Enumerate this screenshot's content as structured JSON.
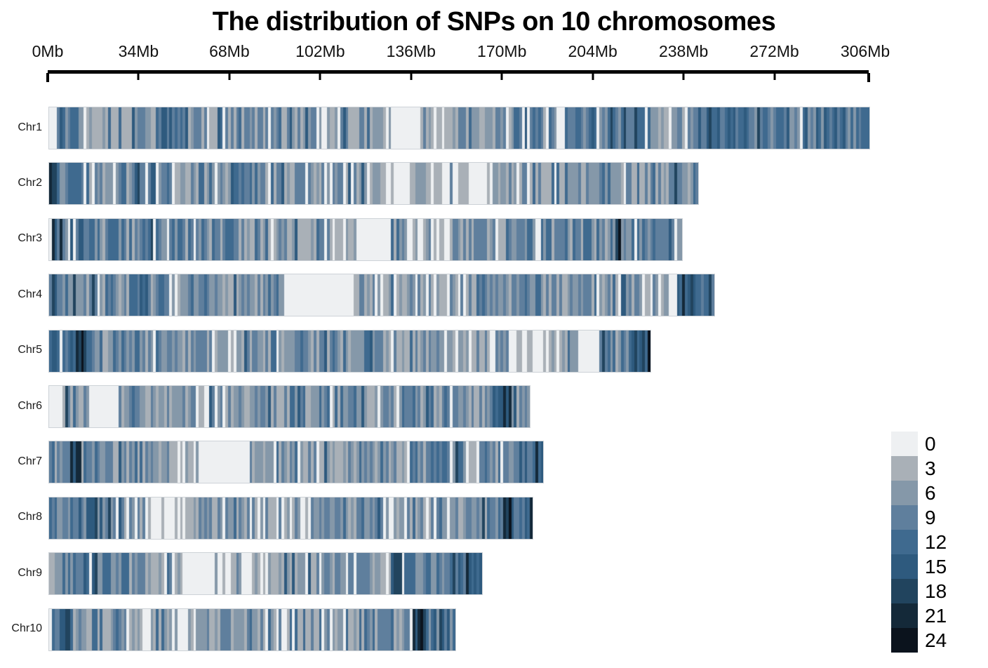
{
  "title": "The distribution of SNPs on 10 chromosomes",
  "axis": {
    "tick_labels": [
      "0Mb",
      "34Mb",
      "68Mb",
      "102Mb",
      "136Mb",
      "170Mb",
      "204Mb",
      "238Mb",
      "272Mb",
      "306Mb"
    ],
    "tick_values_mb": [
      0,
      34,
      68,
      102,
      136,
      170,
      204,
      238,
      272,
      306
    ],
    "max_mb": 306,
    "unit": "Mb"
  },
  "legend": {
    "values": [
      "0",
      "3",
      "6",
      "9",
      "12",
      "15",
      "18",
      "21",
      "24"
    ],
    "colors": [
      "#eef0f2",
      "#a9b0b7",
      "#8598a9",
      "#5f7f9d",
      "#3f6a8f",
      "#2e5a7e",
      "#21445e",
      "#142939",
      "#0b131d"
    ],
    "bin_step": 3
  },
  "chart_data": {
    "type": "heatmap",
    "title": "The distribution of SNPs on 10 chromosomes",
    "x_unit": "Mb",
    "x_range": [
      0,
      306
    ],
    "window_size_mb": 1,
    "value_meaning": "SNP count per 1Mb window (color-coded, legend scale 0-24)",
    "value_range": [
      0,
      24
    ],
    "legend_position": "right",
    "chromosomes": [
      {
        "name": "Chr1",
        "length_mb": 307,
        "seed": 13,
        "density_segments": [
          [
            0,
            2,
            1
          ],
          [
            2,
            12,
            12
          ],
          [
            12,
            40,
            8
          ],
          [
            40,
            52,
            13
          ],
          [
            52,
            90,
            8
          ],
          [
            90,
            118,
            7
          ],
          [
            118,
            128,
            5
          ],
          [
            128,
            138,
            1
          ],
          [
            138,
            160,
            6
          ],
          [
            160,
            174,
            7
          ],
          [
            174,
            184,
            12
          ],
          [
            184,
            190,
            8
          ],
          [
            190,
            193,
            1
          ],
          [
            193,
            228,
            11
          ],
          [
            228,
            240,
            7
          ],
          [
            240,
            307,
            12
          ]
        ]
      },
      {
        "name": "Chr2",
        "length_mb": 243,
        "seed": 47,
        "density_segments": [
          [
            0,
            3,
            20
          ],
          [
            3,
            12,
            12
          ],
          [
            12,
            30,
            9
          ],
          [
            30,
            45,
            11
          ],
          [
            45,
            70,
            9
          ],
          [
            70,
            80,
            11
          ],
          [
            80,
            100,
            8
          ],
          [
            100,
            125,
            7
          ],
          [
            125,
            137,
            2
          ],
          [
            137,
            152,
            6
          ],
          [
            152,
            164,
            2
          ],
          [
            164,
            185,
            6
          ],
          [
            185,
            215,
            8
          ],
          [
            215,
            232,
            9
          ],
          [
            232,
            243,
            10
          ]
        ]
      },
      {
        "name": "Chr3",
        "length_mb": 237,
        "seed": 91,
        "density_segments": [
          [
            0,
            2,
            22
          ],
          [
            2,
            12,
            13
          ],
          [
            12,
            30,
            9
          ],
          [
            30,
            60,
            10
          ],
          [
            60,
            85,
            9
          ],
          [
            85,
            100,
            7
          ],
          [
            100,
            115,
            6
          ],
          [
            115,
            128,
            1
          ],
          [
            128,
            150,
            5
          ],
          [
            150,
            167,
            7
          ],
          [
            167,
            171,
            2
          ],
          [
            171,
            190,
            10
          ],
          [
            190,
            212,
            9
          ],
          [
            212,
            214,
            20
          ],
          [
            214,
            237,
            11
          ]
        ]
      },
      {
        "name": "Chr4",
        "length_mb": 249,
        "seed": 7,
        "density_segments": [
          [
            0,
            3,
            15
          ],
          [
            3,
            25,
            10
          ],
          [
            25,
            45,
            9
          ],
          [
            45,
            52,
            3
          ],
          [
            52,
            88,
            8
          ],
          [
            88,
            113,
            1
          ],
          [
            113,
            135,
            6
          ],
          [
            135,
            160,
            7
          ],
          [
            160,
            190,
            9
          ],
          [
            190,
            215,
            8
          ],
          [
            215,
            232,
            7
          ],
          [
            232,
            235,
            3
          ],
          [
            235,
            249,
            14
          ]
        ]
      },
      {
        "name": "Chr5",
        "length_mb": 225,
        "seed": 133,
        "density_segments": [
          [
            0,
            10,
            13
          ],
          [
            10,
            14,
            20
          ],
          [
            14,
            45,
            10
          ],
          [
            45,
            60,
            8
          ],
          [
            60,
            70,
            5
          ],
          [
            70,
            95,
            9
          ],
          [
            95,
            114,
            8
          ],
          [
            114,
            124,
            12
          ],
          [
            124,
            150,
            8
          ],
          [
            150,
            172,
            7
          ],
          [
            172,
            191,
            2
          ],
          [
            191,
            198,
            8
          ],
          [
            198,
            206,
            1
          ],
          [
            206,
            217,
            10
          ],
          [
            217,
            225,
            16
          ]
        ]
      },
      {
        "name": "Chr6",
        "length_mb": 180,
        "seed": 29,
        "density_segments": [
          [
            0,
            4,
            2
          ],
          [
            4,
            15,
            10
          ],
          [
            15,
            26,
            1
          ],
          [
            26,
            42,
            8
          ],
          [
            42,
            55,
            7
          ],
          [
            55,
            60,
            3
          ],
          [
            60,
            90,
            7
          ],
          [
            90,
            120,
            9
          ],
          [
            120,
            150,
            9
          ],
          [
            150,
            165,
            8
          ],
          [
            165,
            174,
            13
          ],
          [
            174,
            180,
            9
          ]
        ]
      },
      {
        "name": "Chr7",
        "length_mb": 185,
        "seed": 61,
        "density_segments": [
          [
            0,
            8,
            9
          ],
          [
            8,
            12,
            18
          ],
          [
            12,
            30,
            9
          ],
          [
            30,
            54,
            8
          ],
          [
            54,
            75,
            1
          ],
          [
            75,
            95,
            5
          ],
          [
            95,
            120,
            8
          ],
          [
            120,
            140,
            9
          ],
          [
            140,
            156,
            10
          ],
          [
            156,
            161,
            2
          ],
          [
            161,
            174,
            9
          ],
          [
            174,
            185,
            13
          ]
        ]
      },
      {
        "name": "Chr8",
        "length_mb": 181,
        "seed": 83,
        "density_segments": [
          [
            0,
            8,
            11
          ],
          [
            8,
            28,
            12
          ],
          [
            28,
            36,
            5
          ],
          [
            36,
            50,
            2
          ],
          [
            50,
            70,
            8
          ],
          [
            70,
            94,
            7
          ],
          [
            94,
            98,
            2
          ],
          [
            98,
            125,
            8
          ],
          [
            125,
            130,
            3
          ],
          [
            130,
            155,
            8
          ],
          [
            155,
            170,
            10
          ],
          [
            170,
            173,
            21
          ],
          [
            173,
            181,
            13
          ]
        ]
      },
      {
        "name": "Chr9",
        "length_mb": 162,
        "seed": 17,
        "density_segments": [
          [
            0,
            2,
            3
          ],
          [
            2,
            12,
            11
          ],
          [
            12,
            18,
            14
          ],
          [
            18,
            30,
            10
          ],
          [
            30,
            45,
            8
          ],
          [
            45,
            50,
            5
          ],
          [
            50,
            59,
            1
          ],
          [
            59,
            65,
            6
          ],
          [
            65,
            80,
            5
          ],
          [
            80,
            100,
            7
          ],
          [
            100,
            128,
            9
          ],
          [
            128,
            136,
            15
          ],
          [
            136,
            152,
            10
          ],
          [
            152,
            162,
            13
          ]
        ]
      },
      {
        "name": "Chr10",
        "length_mb": 152,
        "seed": 53,
        "density_segments": [
          [
            0,
            2,
            4
          ],
          [
            2,
            9,
            16
          ],
          [
            9,
            20,
            9
          ],
          [
            20,
            35,
            8
          ],
          [
            35,
            55,
            4
          ],
          [
            55,
            75,
            8
          ],
          [
            75,
            90,
            5
          ],
          [
            90,
            105,
            9
          ],
          [
            105,
            111,
            4
          ],
          [
            111,
            118,
            8
          ],
          [
            118,
            122,
            13
          ],
          [
            122,
            136,
            8
          ],
          [
            136,
            140,
            22
          ],
          [
            140,
            152,
            12
          ]
        ]
      }
    ]
  }
}
